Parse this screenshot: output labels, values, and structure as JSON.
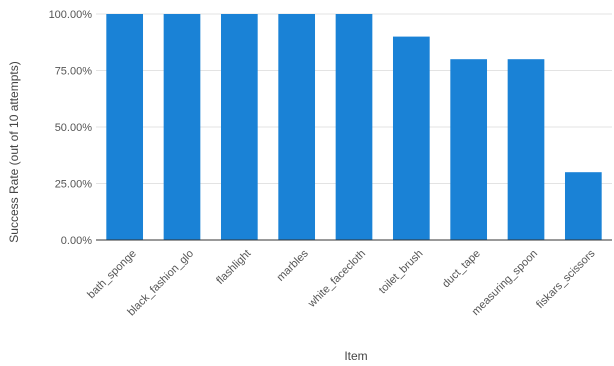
{
  "chart_data": {
    "type": "bar",
    "title": "",
    "xlabel": "Item",
    "ylabel": "Success Rate (out of 10 attempts)",
    "categories": [
      "bath_sponge",
      "black_fashion_glo",
      "flashlight",
      "marbles",
      "white_facecloth",
      "toilet_brush",
      "duct_tape",
      "measuring_spoon",
      "fiskars_scissors"
    ],
    "values": [
      100,
      100,
      100,
      100,
      100,
      90,
      80,
      80,
      30
    ],
    "ylim": [
      0,
      100
    ],
    "yticks": [
      0,
      25,
      50,
      75,
      100
    ],
    "ytick_labels": [
      "0.00%",
      "25.00%",
      "50.00%",
      "75.00%",
      "100.00%"
    ],
    "grid": true,
    "legend": "none",
    "colors": {
      "bar": "#1a82d6",
      "grid": "#e3e3e3",
      "axis": "#333333"
    }
  }
}
